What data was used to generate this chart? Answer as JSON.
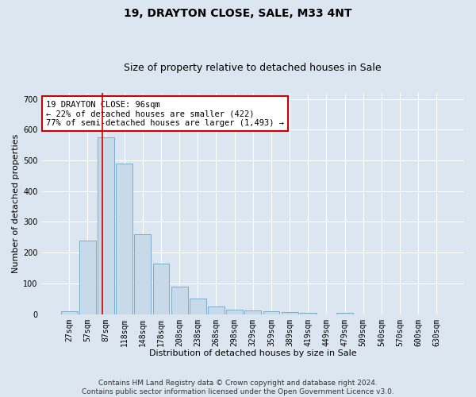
{
  "title": "19, DRAYTON CLOSE, SALE, M33 4NT",
  "subtitle": "Size of property relative to detached houses in Sale",
  "xlabel": "Distribution of detached houses by size in Sale",
  "ylabel": "Number of detached properties",
  "bins": [
    "27sqm",
    "57sqm",
    "87sqm",
    "118sqm",
    "148sqm",
    "178sqm",
    "208sqm",
    "238sqm",
    "268sqm",
    "298sqm",
    "329sqm",
    "359sqm",
    "389sqm",
    "419sqm",
    "449sqm",
    "479sqm",
    "509sqm",
    "540sqm",
    "570sqm",
    "600sqm",
    "630sqm"
  ],
  "values": [
    10,
    240,
    575,
    490,
    260,
    165,
    90,
    50,
    25,
    15,
    12,
    10,
    7,
    5,
    0,
    5,
    0,
    0,
    0,
    0,
    0
  ],
  "bar_color": "#c8d9ea",
  "bar_edge_color": "#7aaec8",
  "background_color": "#dce6f0",
  "grid_color": "#ffffff",
  "marker_line_color": "#cc0000",
  "marker_bin_index": 2,
  "marker_sqm": 96,
  "bin_start_sqm": [
    27,
    57,
    87,
    118,
    148,
    178,
    208,
    238,
    268,
    298,
    329,
    359,
    389,
    419,
    449,
    479,
    509,
    540,
    570,
    600,
    630
  ],
  "annotation_text": "19 DRAYTON CLOSE: 96sqm\n← 22% of detached houses are smaller (422)\n77% of semi-detached houses are larger (1,493) →",
  "annotation_box_facecolor": "#ffffff",
  "annotation_box_edgecolor": "#cc0000",
  "ylim": [
    0,
    720
  ],
  "yticks": [
    0,
    100,
    200,
    300,
    400,
    500,
    600,
    700
  ],
  "footer": "Contains HM Land Registry data © Crown copyright and database right 2024.\nContains public sector information licensed under the Open Government Licence v3.0.",
  "title_fontsize": 10,
  "subtitle_fontsize": 9,
  "xlabel_fontsize": 8,
  "ylabel_fontsize": 8,
  "tick_fontsize": 7,
  "annotation_fontsize": 7.5,
  "footer_fontsize": 6.5,
  "fig_bg_color": "#dce6f0"
}
